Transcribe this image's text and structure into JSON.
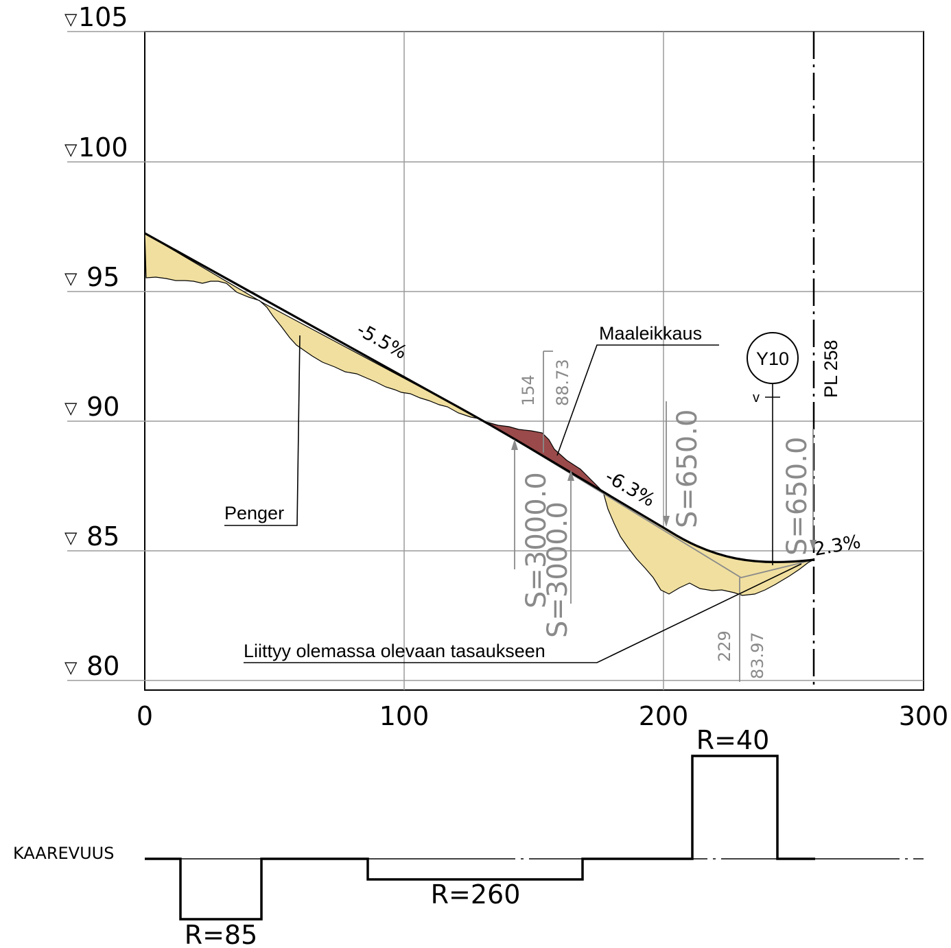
{
  "elevation_labels": [
    "105",
    "100",
    " 95",
    " 90",
    " 85",
    " 80"
  ],
  "chainage_labels": [
    "0",
    "100",
    "200",
    "300"
  ],
  "grades": {
    "g1": "-5.5%",
    "g2": "-6.3%",
    "g3": "2.3%"
  },
  "vertical_curves": {
    "crest_station": "154",
    "crest_elevation": "88.73",
    "sag_station": "229",
    "sag_elevation": "83.97",
    "s_crest_1": "S=3000.0",
    "s_crest_2": "S=3000.0",
    "s_sag_1": "S=650.0",
    "s_sag_2": "S=650.0"
  },
  "annotations": {
    "maaleikkaus": "Maaleikkaus",
    "penger": "Penger",
    "liittyy": "Liittyy olemassa olevaan tasaukseen",
    "y10": "Y10",
    "v": "v",
    "pl": "PL 258"
  },
  "curvature": {
    "label": "KAAREVUUS",
    "r85": "R=85",
    "r260": "R=260",
    "r40": "R=40"
  },
  "colors": {
    "fill": "#f0df9f",
    "cut": "#9a4a4a",
    "grid": "#9a9a9a",
    "gray_text": "#8a8a8a"
  }
}
